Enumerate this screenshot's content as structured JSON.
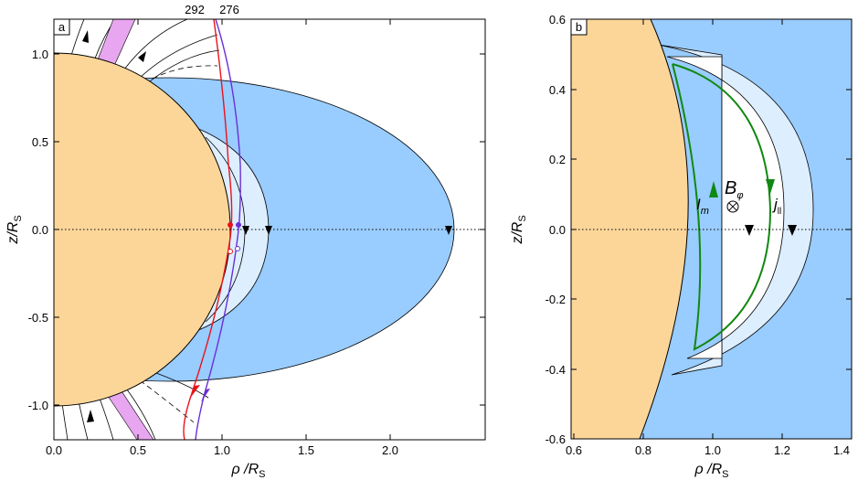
{
  "panel_a": {
    "label": "a",
    "xlabel_main": "ρ /R",
    "xlabel_sub": "S",
    "ylabel_main": "z/R",
    "ylabel_sub": "S",
    "xticks": [
      "0.0",
      "0.5",
      "1.0",
      "1.5",
      "2.0"
    ],
    "yticks": [
      "1.0",
      "0.5",
      "0.0",
      "-0.5",
      "-1.0"
    ],
    "orbit_labels": [
      {
        "text": "292",
        "color": "#e8131b"
      },
      {
        "text": "276",
        "color": "#6a2fd6"
      }
    ]
  },
  "panel_b": {
    "label": "b",
    "xlabel_main": "ρ /R",
    "xlabel_sub": "S",
    "ylabel_main": "z/R",
    "ylabel_sub": "S",
    "xticks": [
      "0.6",
      "0.8",
      "1.0",
      "1.2",
      "1.4"
    ],
    "yticks": [
      "0.6",
      "0.4",
      "0.2",
      "0.0",
      "-0.2",
      "-0.4",
      "-0.6"
    ],
    "current_label_main": "I",
    "current_label_sub": "m",
    "field_label_main": "B",
    "field_label_sub": "φ",
    "parallel_label_main": "j",
    "parallel_label_sub": "ll"
  },
  "colors": {
    "planet": "#fcd699",
    "ring_region": "#99ccff",
    "light_region": "#ddeeff",
    "magenta_band": "#e8a6f0",
    "current_loop": "#118811",
    "orbit_292": "#e8131b",
    "orbit_276": "#6a2fd6"
  }
}
